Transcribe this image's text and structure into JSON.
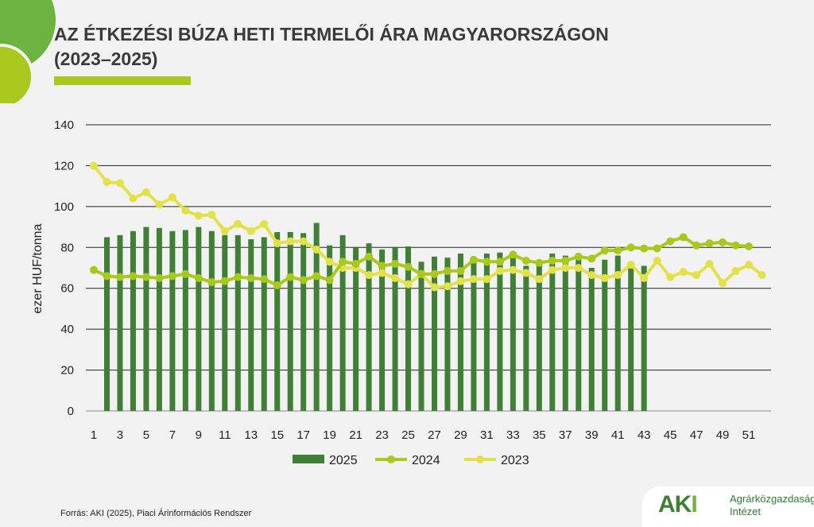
{
  "title_line1": "AZ ÉTKEZÉSI BÚZA HETI TERMELŐI ÁRA MAGYARORSZÁGON",
  "title_line2": "(2023–2025)",
  "source": "Forrás: AKI (2025), Piaci Árinformációs Rendszer",
  "logo": {
    "mark": "AKI",
    "line1": "Agrárközgazdasági",
    "line2": "Intézet"
  },
  "colors": {
    "accent": "#a8c81e",
    "bar2025": "#3f7f36",
    "line2024": "#a8c81e",
    "line2023": "#e3e14a",
    "circle": "#6db33f"
  },
  "chart_data": {
    "type": "bar+line",
    "ylabel": "ezer HUF/tonna",
    "ylim": [
      0,
      140
    ],
    "yticks": [
      0,
      20,
      40,
      60,
      80,
      100,
      120,
      140
    ],
    "xticks": [
      1,
      3,
      5,
      7,
      9,
      11,
      13,
      15,
      17,
      19,
      21,
      23,
      25,
      27,
      29,
      31,
      33,
      35,
      37,
      39,
      41,
      43,
      45,
      47,
      49,
      51
    ],
    "grid": true,
    "legend": "bottom",
    "series": [
      {
        "name": "2025",
        "type": "bar",
        "start_week": 2,
        "values": [
          85,
          86,
          88,
          90,
          89.5,
          88,
          88.5,
          90,
          88,
          86,
          86,
          84,
          85,
          87.5,
          87.5,
          87,
          92,
          81,
          86,
          80,
          82,
          79,
          80,
          80.5,
          73,
          75.5,
          75,
          77,
          74,
          77,
          77.5,
          75,
          71,
          71,
          77,
          76,
          76,
          70,
          74,
          76,
          71,
          71
        ]
      },
      {
        "name": "2024",
        "type": "line",
        "start_week": 1,
        "values": [
          69,
          66,
          65.5,
          66,
          65.5,
          65,
          66,
          67,
          65,
          63,
          63.5,
          65.5,
          65,
          64.5,
          61.5,
          65.5,
          64,
          66,
          64,
          73,
          72,
          75.5,
          71,
          72,
          70.5,
          67,
          67,
          68.5,
          68.5,
          74,
          73,
          73,
          76.5,
          73.5,
          72.5,
          73.5,
          73.5,
          75.5,
          74.5,
          78.5,
          78.5,
          80,
          79.5,
          79.5,
          83,
          85,
          81,
          82,
          82.5,
          81,
          80.5
        ]
      },
      {
        "name": "2023",
        "type": "line",
        "start_week": 1,
        "values": [
          120,
          112,
          111.5,
          104,
          107,
          101,
          104.5,
          98,
          95.5,
          96,
          88,
          91.5,
          88,
          91.5,
          82,
          83,
          83,
          79,
          73,
          70,
          70,
          66.5,
          67.5,
          65,
          62,
          67,
          60.5,
          61,
          63.5,
          64.5,
          64.5,
          68.5,
          69,
          67.5,
          64.5,
          69,
          70,
          70,
          66.5,
          65,
          66.5,
          71.5,
          65,
          73.5,
          65.5,
          68,
          66.5,
          72,
          62.5,
          68.5,
          71.5,
          66.5
        ]
      }
    ]
  }
}
